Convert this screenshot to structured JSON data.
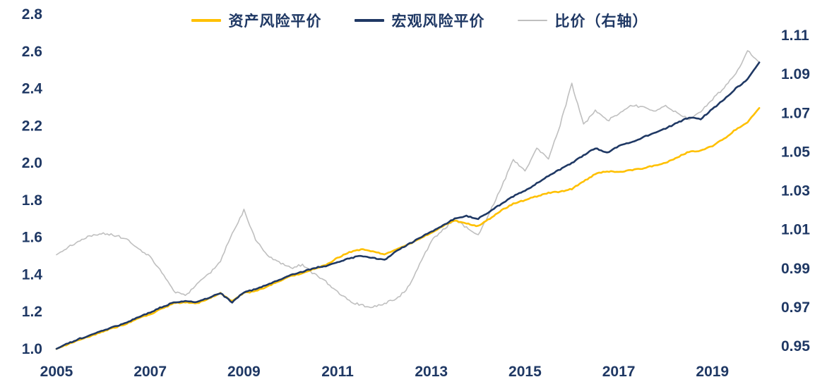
{
  "chart_data": {
    "type": "line",
    "title": "",
    "grid": false,
    "legend_position": "top-center",
    "axis_label_color": "#1F3864",
    "x_range": [
      2005,
      2020.3
    ],
    "x_ticks": {
      "labels": [
        "2005",
        "2007",
        "2009",
        "2011",
        "2013",
        "2015",
        "2017",
        "2019"
      ],
      "values": [
        2005,
        2007,
        2009,
        2011,
        2013,
        2015,
        2017,
        2019
      ]
    },
    "y_left": {
      "range": [
        1.0,
        2.8
      ],
      "tick_labels": [
        "1.0",
        "1.2",
        "1.4",
        "1.6",
        "1.8",
        "2.0",
        "2.2",
        "2.4",
        "2.6",
        "2.8"
      ],
      "tick_values": [
        1.0,
        1.2,
        1.4,
        1.6,
        1.8,
        2.0,
        2.2,
        2.4,
        2.6,
        2.8
      ]
    },
    "y_right": {
      "range": [
        0.95,
        1.11
      ],
      "tick_labels": [
        "0.95",
        "0.97",
        "0.99",
        "1.01",
        "1.03",
        "1.05",
        "1.07",
        "1.09",
        "1.11"
      ],
      "tick_values": [
        0.95,
        0.97,
        0.99,
        1.01,
        1.03,
        1.05,
        1.07,
        1.09,
        1.11
      ]
    },
    "x": [
      2005,
      2005.25,
      2005.5,
      2005.75,
      2006,
      2006.25,
      2006.5,
      2006.75,
      2007,
      2007.25,
      2007.5,
      2007.75,
      2008,
      2008.25,
      2008.5,
      2008.75,
      2009,
      2009.25,
      2009.5,
      2009.75,
      2010,
      2010.25,
      2010.5,
      2010.75,
      2011,
      2011.25,
      2011.5,
      2011.75,
      2012,
      2012.25,
      2012.5,
      2012.75,
      2013,
      2013.25,
      2013.5,
      2013.75,
      2014,
      2014.25,
      2014.5,
      2014.75,
      2015,
      2015.25,
      2015.5,
      2015.75,
      2016,
      2016.25,
      2016.5,
      2016.75,
      2017,
      2017.25,
      2017.5,
      2017.75,
      2018,
      2018.25,
      2018.5,
      2018.75,
      2019,
      2019.25,
      2019.5,
      2019.75,
      2020
    ],
    "series": [
      {
        "name": "资产风险平价",
        "color": "#FFC000",
        "axis": "left",
        "width": 2.6,
        "values": [
          1.0,
          1.025,
          1.05,
          1.07,
          1.095,
          1.115,
          1.135,
          1.165,
          1.185,
          1.215,
          1.245,
          1.25,
          1.245,
          1.27,
          1.3,
          1.255,
          1.3,
          1.31,
          1.335,
          1.365,
          1.39,
          1.405,
          1.43,
          1.45,
          1.49,
          1.52,
          1.535,
          1.525,
          1.505,
          1.535,
          1.56,
          1.59,
          1.625,
          1.66,
          1.69,
          1.675,
          1.66,
          1.7,
          1.745,
          1.78,
          1.8,
          1.82,
          1.84,
          1.845,
          1.86,
          1.9,
          1.94,
          1.955,
          1.95,
          1.96,
          1.97,
          1.985,
          2.0,
          2.03,
          2.06,
          2.065,
          2.09,
          2.13,
          2.18,
          2.22,
          2.295
        ]
      },
      {
        "name": "宏观风险平价",
        "color": "#1F3864",
        "axis": "left",
        "width": 2.6,
        "values": [
          1.0,
          1.03,
          1.055,
          1.075,
          1.1,
          1.12,
          1.14,
          1.17,
          1.195,
          1.225,
          1.25,
          1.255,
          1.25,
          1.275,
          1.3,
          1.25,
          1.305,
          1.32,
          1.345,
          1.37,
          1.395,
          1.415,
          1.435,
          1.445,
          1.465,
          1.487,
          1.5,
          1.49,
          1.478,
          1.525,
          1.56,
          1.595,
          1.63,
          1.665,
          1.7,
          1.715,
          1.7,
          1.74,
          1.78,
          1.82,
          1.85,
          1.89,
          1.93,
          1.965,
          2.0,
          2.04,
          2.08,
          2.055,
          2.09,
          2.11,
          2.135,
          2.16,
          2.185,
          2.215,
          2.245,
          2.235,
          2.29,
          2.34,
          2.4,
          2.45,
          2.54
        ]
      },
      {
        "name": "比价（右轴）",
        "color": "#BFBFBF",
        "axis": "right",
        "width": 1.6,
        "values": [
          0.997,
          1.001,
          1.004,
          1.007,
          1.008,
          1.007,
          1.005,
          1.0,
          0.996,
          0.988,
          0.978,
          0.976,
          0.982,
          0.987,
          0.994,
          1.008,
          1.02,
          1.005,
          0.997,
          0.993,
          0.99,
          0.992,
          0.987,
          0.983,
          0.978,
          0.973,
          0.971,
          0.97,
          0.972,
          0.974,
          0.98,
          0.992,
          1.004,
          1.01,
          1.015,
          1.011,
          1.007,
          1.019,
          1.032,
          1.046,
          1.04,
          1.052,
          1.046,
          1.064,
          1.085,
          1.064,
          1.071,
          1.066,
          1.069,
          1.074,
          1.073,
          1.071,
          1.074,
          1.07,
          1.067,
          1.071,
          1.077,
          1.083,
          1.09,
          1.102,
          1.096
        ]
      }
    ]
  }
}
